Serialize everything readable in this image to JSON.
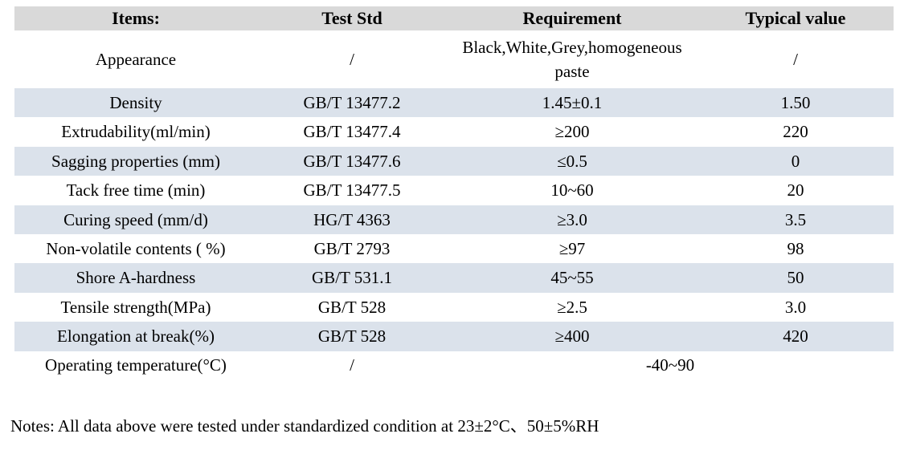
{
  "colors": {
    "page_bg": "#ffffff",
    "header_bg": "#d9d9d9",
    "alt_row_bg": "#dbe2eb",
    "text": "#000000"
  },
  "table": {
    "columns": [
      "Items:",
      "Test Std",
      "Requirement",
      "Typical value"
    ],
    "rows": [
      {
        "item": "Appearance",
        "test_std": "/",
        "requirement": "Black,White,Grey,homogeneous paste",
        "typical": "/"
      },
      {
        "item": "Density",
        "test_std": "GB/T 13477.2",
        "requirement": "1.45±0.1",
        "typical": "1.50"
      },
      {
        "item": "Extrudability(ml/min)",
        "test_std": "GB/T 13477.4",
        "requirement": "≥200",
        "typical": "220"
      },
      {
        "item": "Sagging properties (mm)",
        "test_std": "GB/T 13477.6",
        "requirement": "≤0.5",
        "typical": "0"
      },
      {
        "item": "Tack free time (min)",
        "test_std": "GB/T 13477.5",
        "requirement": "10~60",
        "typical": "20"
      },
      {
        "item": "Curing speed (mm/d)",
        "test_std": "HG/T 4363",
        "requirement": "≥3.0",
        "typical": "3.5"
      },
      {
        "item": "Non-volatile contents ( %)",
        "test_std": "GB/T 2793",
        "requirement": "≥97",
        "typical": "98"
      },
      {
        "item": "Shore A-hardness",
        "test_std": "GB/T 531.1",
        "requirement": "45~55",
        "typical": "50"
      },
      {
        "item": "Tensile strength(MPa)",
        "test_std": "GB/T 528",
        "requirement": "≥2.5",
        "typical": "3.0"
      },
      {
        "item": "Elongation at break(%)",
        "test_std": "GB/T 528",
        "requirement": "≥400",
        "typical": "420"
      },
      {
        "item": "Operating temperature(°C)",
        "test_std": "/",
        "requirement": "-40~90",
        "typical": ""
      }
    ]
  },
  "notes": "Notes: All data above were tested under standardized condition at 23±2°C、50±5%RH"
}
